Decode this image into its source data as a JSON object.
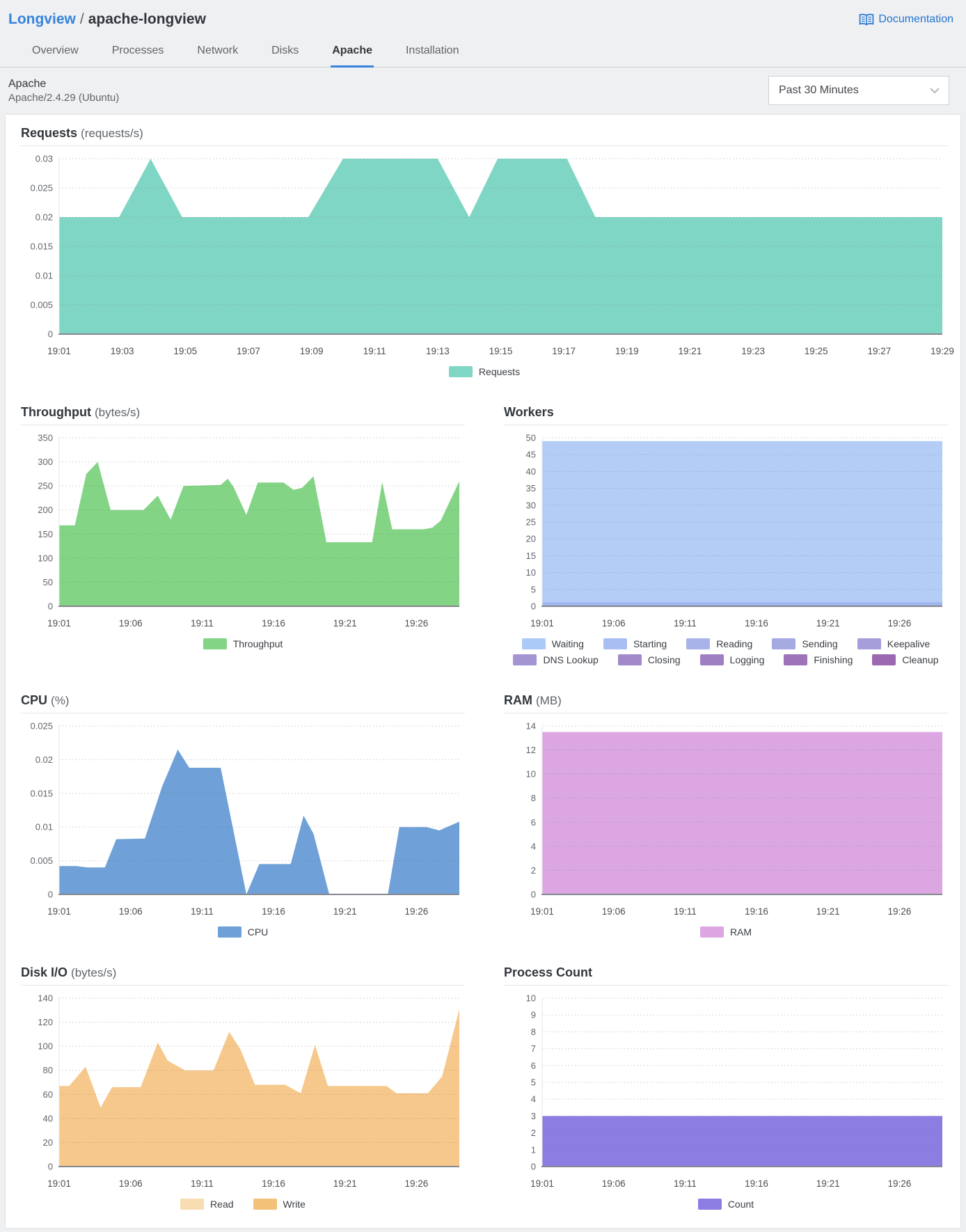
{
  "page": {
    "breadcrumb": {
      "parent": "Longview",
      "separator": "/",
      "current": "apache-longview"
    },
    "doc_link_label": "Documentation",
    "tabs": [
      {
        "label": "Overview",
        "active": false
      },
      {
        "label": "Processes",
        "active": false
      },
      {
        "label": "Network",
        "active": false
      },
      {
        "label": "Disks",
        "active": false
      },
      {
        "label": "Apache",
        "active": true
      },
      {
        "label": "Installation",
        "active": false
      }
    ],
    "section_title": "Apache",
    "section_subtitle": "Apache/2.4.29 (Ubuntu)",
    "time_range_value": "Past 30 Minutes",
    "accent_color": "#3683dc"
  },
  "chart_data": [
    {
      "type": "area",
      "title": "Requests",
      "unit": "(requests/s)",
      "xlim": [
        1,
        29
      ],
      "ylim": [
        0,
        0.03
      ],
      "yticks": [
        {
          "value": 0,
          "label": "0"
        },
        {
          "value": 0.005,
          "label": "0.005"
        },
        {
          "value": 0.01,
          "label": "0.01"
        },
        {
          "value": 0.015,
          "label": "0.015"
        },
        {
          "value": 0.02,
          "label": "0.02"
        },
        {
          "value": 0.025,
          "label": "0.025"
        },
        {
          "value": 0.03,
          "label": "0.03"
        }
      ],
      "xticks": [
        {
          "m": 1,
          "label": "19:01"
        },
        {
          "m": 3,
          "label": "19:03"
        },
        {
          "m": 5,
          "label": "19:05"
        },
        {
          "m": 7,
          "label": "19:07"
        },
        {
          "m": 9,
          "label": "19:09"
        },
        {
          "m": 11,
          "label": "19:11"
        },
        {
          "m": 13,
          "label": "19:13"
        },
        {
          "m": 15,
          "label": "19:15"
        },
        {
          "m": 17,
          "label": "19:17"
        },
        {
          "m": 19,
          "label": "19:19"
        },
        {
          "m": 21,
          "label": "19:21"
        },
        {
          "m": 23,
          "label": "19:23"
        },
        {
          "m": 25,
          "label": "19:25"
        },
        {
          "m": 27,
          "label": "19:27"
        },
        {
          "m": 29,
          "label": "19:29"
        }
      ],
      "series": [
        {
          "name": "Requests",
          "color": "#80d6c4",
          "points": [
            [
              1,
              0.02
            ],
            [
              2.9,
              0.02
            ],
            [
              3.9,
              0.03
            ],
            [
              4.9,
              0.02
            ],
            [
              8.9,
              0.02
            ],
            [
              10,
              0.03
            ],
            [
              13,
              0.03
            ],
            [
              14,
              0.02
            ],
            [
              14.9,
              0.03
            ],
            [
              17.1,
              0.03
            ],
            [
              18,
              0.02
            ],
            [
              29,
              0.02
            ]
          ]
        }
      ],
      "legend": [
        [
          {
            "label": "Requests",
            "color": "#80d6c4"
          }
        ]
      ]
    },
    {
      "type": "area",
      "title": "Throughput",
      "unit": "(bytes/s)",
      "xlim": [
        1,
        29
      ],
      "ylim": [
        0,
        350
      ],
      "yticks": [
        {
          "value": 0,
          "label": "0"
        },
        {
          "value": 50,
          "label": "50"
        },
        {
          "value": 100,
          "label": "100"
        },
        {
          "value": 150,
          "label": "150"
        },
        {
          "value": 200,
          "label": "200"
        },
        {
          "value": 250,
          "label": "250"
        },
        {
          "value": 300,
          "label": "300"
        },
        {
          "value": 350,
          "label": "350"
        }
      ],
      "xticks": [
        {
          "m": 1,
          "label": "19:01"
        },
        {
          "m": 6,
          "label": "19:06"
        },
        {
          "m": 11,
          "label": "19:11"
        },
        {
          "m": 16,
          "label": "19:16"
        },
        {
          "m": 21,
          "label": "19:21"
        },
        {
          "m": 26,
          "label": "19:26"
        }
      ],
      "series": [
        {
          "name": "Throughput",
          "color": "#83d485",
          "points": [
            [
              1,
              168
            ],
            [
              2.1,
              168
            ],
            [
              2.9,
              275
            ],
            [
              3.7,
              300
            ],
            [
              4.6,
              200
            ],
            [
              6.9,
              200
            ],
            [
              7.9,
              230
            ],
            [
              8.8,
              180
            ],
            [
              9.7,
              250
            ],
            [
              12.3,
              252
            ],
            [
              12.8,
              265
            ],
            [
              13.2,
              248
            ],
            [
              14.1,
              190
            ],
            [
              14.9,
              257
            ],
            [
              16.7,
              257
            ],
            [
              17.4,
              242
            ],
            [
              18,
              246
            ],
            [
              18.8,
              270
            ],
            [
              19.7,
              133
            ],
            [
              22.9,
              133
            ],
            [
              23.6,
              258
            ],
            [
              24.3,
              160
            ],
            [
              26.5,
              160
            ],
            [
              27.1,
              163
            ],
            [
              27.7,
              178
            ],
            [
              29,
              260
            ]
          ]
        }
      ],
      "legend": [
        [
          {
            "label": "Throughput",
            "color": "#83d485"
          }
        ]
      ]
    },
    {
      "type": "area",
      "title": "Workers",
      "unit": "",
      "xlim": [
        1,
        29
      ],
      "ylim": [
        0,
        50
      ],
      "yticks": [
        {
          "value": 0,
          "label": "0"
        },
        {
          "value": 5,
          "label": "5"
        },
        {
          "value": 10,
          "label": "10"
        },
        {
          "value": 15,
          "label": "15"
        },
        {
          "value": 20,
          "label": "20"
        },
        {
          "value": 25,
          "label": "25"
        },
        {
          "value": 30,
          "label": "30"
        },
        {
          "value": 35,
          "label": "35"
        },
        {
          "value": 40,
          "label": "40"
        },
        {
          "value": 45,
          "label": "45"
        },
        {
          "value": 50,
          "label": "50"
        }
      ],
      "xticks": [
        {
          "m": 1,
          "label": "19:01"
        },
        {
          "m": 6,
          "label": "19:06"
        },
        {
          "m": 11,
          "label": "19:11"
        },
        {
          "m": 16,
          "label": "19:16"
        },
        {
          "m": 21,
          "label": "19:21"
        },
        {
          "m": 26,
          "label": "19:26"
        }
      ],
      "series": [
        {
          "name": "Waiting",
          "color": "#b3cdf6",
          "points": [
            [
              1,
              49
            ],
            [
              29,
              49
            ]
          ]
        },
        {
          "name": "Sending",
          "color": "#9fb6ef",
          "points": [
            [
              1,
              1.2
            ],
            [
              29,
              1.2
            ]
          ]
        }
      ],
      "legend": [
        [
          {
            "label": "Waiting",
            "color": "#abcaf7"
          },
          {
            "label": "Starting",
            "color": "#a9bef3"
          },
          {
            "label": "Reading",
            "color": "#a8b3ea"
          },
          {
            "label": "Sending",
            "color": "#a7a9e2"
          },
          {
            "label": "Keepalive",
            "color": "#a69eda"
          }
        ],
        [
          {
            "label": "DNS Lookup",
            "color": "#a494d2"
          },
          {
            "label": "Closing",
            "color": "#a289ca"
          },
          {
            "label": "Logging",
            "color": "#a07ec2"
          },
          {
            "label": "Finishing",
            "color": "#9e73ba"
          },
          {
            "label": "Cleanup",
            "color": "#9c68b2"
          }
        ]
      ]
    },
    {
      "type": "area",
      "title": "CPU",
      "unit": "(%)",
      "xlim": [
        1,
        29
      ],
      "ylim": [
        0,
        0.025
      ],
      "yticks": [
        {
          "value": 0,
          "label": "0"
        },
        {
          "value": 0.005,
          "label": "0.005"
        },
        {
          "value": 0.01,
          "label": "0.01"
        },
        {
          "value": 0.015,
          "label": "0.015"
        },
        {
          "value": 0.02,
          "label": "0.02"
        },
        {
          "value": 0.025,
          "label": "0.025"
        }
      ],
      "xticks": [
        {
          "m": 1,
          "label": "19:01"
        },
        {
          "m": 6,
          "label": "19:06"
        },
        {
          "m": 11,
          "label": "19:11"
        },
        {
          "m": 16,
          "label": "19:16"
        },
        {
          "m": 21,
          "label": "19:21"
        },
        {
          "m": 26,
          "label": "19:26"
        }
      ],
      "series": [
        {
          "name": "CPU",
          "color": "#6fa0d7",
          "points": [
            [
              1,
              0.0042
            ],
            [
              2.2,
              0.0042
            ],
            [
              3,
              0.004
            ],
            [
              4.2,
              0.004
            ],
            [
              5,
              0.0082
            ],
            [
              7,
              0.0083
            ],
            [
              8.2,
              0.016
            ],
            [
              9.3,
              0.0215
            ],
            [
              10.1,
              0.0188
            ],
            [
              12.3,
              0.0188
            ],
            [
              14.1,
              0
            ],
            [
              15,
              0.0045
            ],
            [
              17.2,
              0.0045
            ],
            [
              18.1,
              0.0117
            ],
            [
              18.8,
              0.009
            ],
            [
              19.9,
              0
            ],
            [
              24,
              0
            ],
            [
              24.8,
              0.01
            ],
            [
              26.7,
              0.01
            ],
            [
              27.6,
              0.0095
            ],
            [
              29,
              0.0108
            ]
          ]
        }
      ],
      "legend": [
        [
          {
            "label": "CPU",
            "color": "#6fa0d7"
          }
        ]
      ]
    },
    {
      "type": "area",
      "title": "RAM",
      "unit": "(MB)",
      "xlim": [
        1,
        29
      ],
      "ylim": [
        0,
        14
      ],
      "yticks": [
        {
          "value": 0,
          "label": "0"
        },
        {
          "value": 2,
          "label": "2"
        },
        {
          "value": 4,
          "label": "4"
        },
        {
          "value": 6,
          "label": "6"
        },
        {
          "value": 8,
          "label": "8"
        },
        {
          "value": 10,
          "label": "10"
        },
        {
          "value": 12,
          "label": "12"
        },
        {
          "value": 14,
          "label": "14"
        }
      ],
      "xticks": [
        {
          "m": 1,
          "label": "19:01"
        },
        {
          "m": 6,
          "label": "19:06"
        },
        {
          "m": 11,
          "label": "19:11"
        },
        {
          "m": 16,
          "label": "19:16"
        },
        {
          "m": 21,
          "label": "19:21"
        },
        {
          "m": 26,
          "label": "19:26"
        }
      ],
      "series": [
        {
          "name": "RAM",
          "color": "#dca6e2",
          "points": [
            [
              1,
              13.5
            ],
            [
              29,
              13.5
            ]
          ]
        }
      ],
      "legend": [
        [
          {
            "label": "RAM",
            "color": "#dca6e2"
          }
        ]
      ]
    },
    {
      "type": "area",
      "title": "Disk I/O",
      "unit": "(bytes/s)",
      "xlim": [
        1,
        29
      ],
      "ylim": [
        0,
        140
      ],
      "yticks": [
        {
          "value": 0,
          "label": "0"
        },
        {
          "value": 20,
          "label": "20"
        },
        {
          "value": 40,
          "label": "40"
        },
        {
          "value": 60,
          "label": "60"
        },
        {
          "value": 80,
          "label": "80"
        },
        {
          "value": 100,
          "label": "100"
        },
        {
          "value": 120,
          "label": "120"
        },
        {
          "value": 140,
          "label": "140"
        }
      ],
      "xticks": [
        {
          "m": 1,
          "label": "19:01"
        },
        {
          "m": 6,
          "label": "19:06"
        },
        {
          "m": 11,
          "label": "19:11"
        },
        {
          "m": 16,
          "label": "19:16"
        },
        {
          "m": 21,
          "label": "19:21"
        },
        {
          "m": 26,
          "label": "19:26"
        }
      ],
      "series": [
        {
          "name": "Write",
          "color": "#f6c88b",
          "points": [
            [
              1,
              67
            ],
            [
              1.7,
              67
            ],
            [
              2.85,
              83
            ],
            [
              3.9,
              49
            ],
            [
              4.7,
              66
            ],
            [
              6.7,
              66
            ],
            [
              7.9,
              103
            ],
            [
              8.6,
              88
            ],
            [
              9.8,
              80
            ],
            [
              11.8,
              80
            ],
            [
              12.9,
              112
            ],
            [
              13.7,
              97
            ],
            [
              14.7,
              68
            ],
            [
              16.8,
              68
            ],
            [
              17.9,
              61
            ],
            [
              18.9,
              101
            ],
            [
              19.8,
              67
            ],
            [
              23.9,
              67
            ],
            [
              24.6,
              61
            ],
            [
              26.8,
              61
            ],
            [
              27.8,
              75
            ],
            [
              29,
              131
            ]
          ]
        }
      ],
      "legend": [
        [
          {
            "label": "Read",
            "color": "#f8ddb2"
          },
          {
            "label": "Write",
            "color": "#f3c178"
          }
        ]
      ]
    },
    {
      "type": "area",
      "title": "Process Count",
      "unit": "",
      "xlim": [
        1,
        29
      ],
      "ylim": [
        0,
        10
      ],
      "yticks": [
        {
          "value": 0,
          "label": "0"
        },
        {
          "value": 1,
          "label": "1"
        },
        {
          "value": 2,
          "label": "2"
        },
        {
          "value": 3,
          "label": "3"
        },
        {
          "value": 4,
          "label": "4"
        },
        {
          "value": 5,
          "label": "5"
        },
        {
          "value": 6,
          "label": "6"
        },
        {
          "value": 7,
          "label": "7"
        },
        {
          "value": 8,
          "label": "8"
        },
        {
          "value": 9,
          "label": "9"
        },
        {
          "value": 10,
          "label": "10"
        }
      ],
      "xticks": [
        {
          "m": 1,
          "label": "19:01"
        },
        {
          "m": 6,
          "label": "19:06"
        },
        {
          "m": 11,
          "label": "19:11"
        },
        {
          "m": 16,
          "label": "19:16"
        },
        {
          "m": 21,
          "label": "19:21"
        },
        {
          "m": 26,
          "label": "19:26"
        }
      ],
      "series": [
        {
          "name": "Count",
          "color": "#8c7de3",
          "points": [
            [
              1,
              3
            ],
            [
              29,
              3
            ]
          ]
        }
      ],
      "legend": [
        [
          {
            "label": "Count",
            "color": "#8c7de3"
          }
        ]
      ]
    }
  ]
}
